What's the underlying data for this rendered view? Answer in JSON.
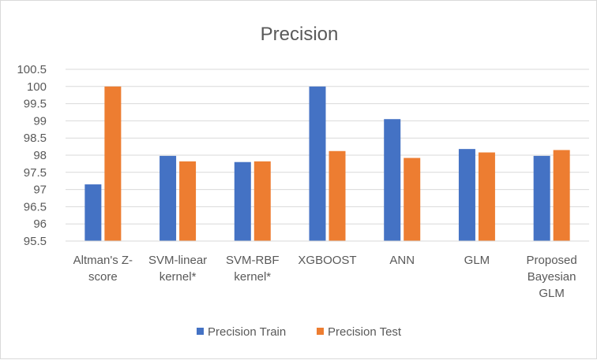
{
  "chart_data": {
    "type": "bar",
    "title": "Precision",
    "categories": [
      [
        "Altman's Z-",
        "score"
      ],
      [
        "SVM-linear",
        "kernel*"
      ],
      [
        "SVM-RBF",
        "kernel*"
      ],
      [
        "XGBOOST"
      ],
      [
        "ANN"
      ],
      [
        "GLM"
      ],
      [
        "Proposed",
        "Bayesian",
        "GLM"
      ]
    ],
    "series": [
      {
        "name": "Precision Train",
        "color": "#4472C4",
        "values": [
          97.15,
          97.98,
          97.8,
          100.0,
          99.05,
          98.18,
          97.98
        ]
      },
      {
        "name": "Precision Test",
        "color": "#ED7D31",
        "values": [
          100.0,
          97.82,
          97.82,
          98.12,
          97.92,
          98.08,
          98.15
        ]
      }
    ],
    "ylim": [
      95.5,
      100.5
    ],
    "yticks": [
      "95.5",
      "96",
      "96.5",
      "97",
      "97.5",
      "98",
      "98.5",
      "99",
      "99.5",
      "100",
      "100.5"
    ],
    "grid": true,
    "legend_position": "bottom",
    "xlabel": "",
    "ylabel": ""
  }
}
